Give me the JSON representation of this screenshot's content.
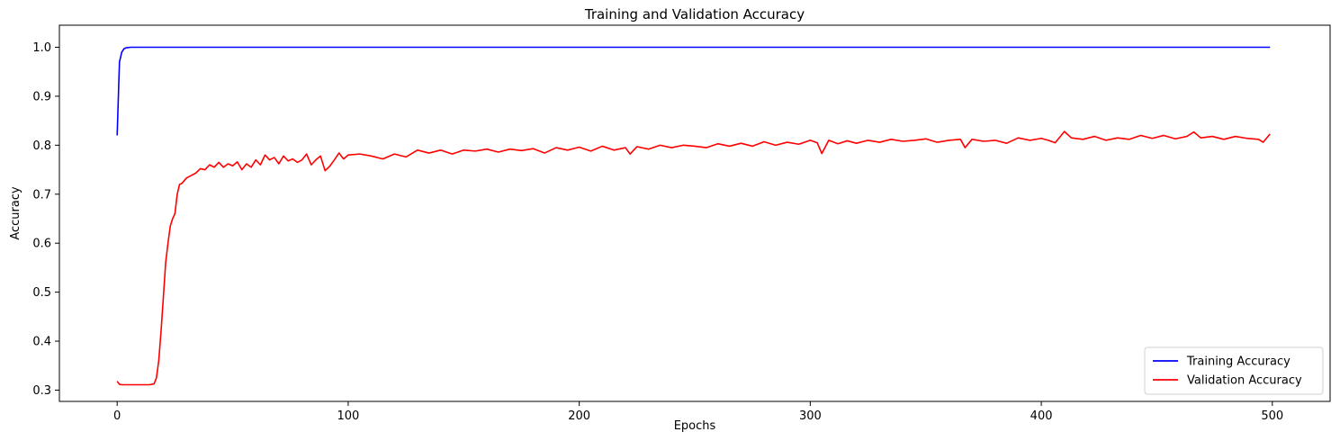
{
  "chart_data": {
    "type": "line",
    "title": "Training and Validation Accuracy",
    "xlabel": "Epochs",
    "ylabel": "Accuracy",
    "xlim": [
      -25,
      525
    ],
    "ylim": [
      0.277,
      1.045
    ],
    "xticks": [
      0,
      100,
      200,
      300,
      400,
      500
    ],
    "yticks": [
      0.3,
      0.4,
      0.5,
      0.6,
      0.7,
      0.8,
      0.9,
      1.0
    ],
    "grid": false,
    "legend_position": "lower-right",
    "series": [
      {
        "name": "Training Accuracy",
        "color": "#0000ff",
        "points": [
          [
            0,
            0.82
          ],
          [
            1,
            0.97
          ],
          [
            2,
            0.99
          ],
          [
            3,
            0.997
          ],
          [
            4,
            0.999
          ],
          [
            6,
            1.0
          ],
          [
            8,
            1.0
          ],
          [
            499,
            1.0
          ]
        ]
      },
      {
        "name": "Validation Accuracy",
        "color": "#ff0000",
        "points": [
          [
            0,
            0.318
          ],
          [
            1,
            0.312
          ],
          [
            2,
            0.311
          ],
          [
            5,
            0.311
          ],
          [
            10,
            0.311
          ],
          [
            14,
            0.311
          ],
          [
            16,
            0.313
          ],
          [
            17,
            0.325
          ],
          [
            18,
            0.36
          ],
          [
            19,
            0.42
          ],
          [
            20,
            0.49
          ],
          [
            21,
            0.56
          ],
          [
            22,
            0.6
          ],
          [
            23,
            0.635
          ],
          [
            24,
            0.65
          ],
          [
            25,
            0.66
          ],
          [
            26,
            0.7
          ],
          [
            27,
            0.72
          ],
          [
            28,
            0.722
          ],
          [
            30,
            0.733
          ],
          [
            32,
            0.738
          ],
          [
            34,
            0.743
          ],
          [
            36,
            0.752
          ],
          [
            38,
            0.75
          ],
          [
            40,
            0.76
          ],
          [
            42,
            0.755
          ],
          [
            44,
            0.765
          ],
          [
            46,
            0.755
          ],
          [
            48,
            0.762
          ],
          [
            50,
            0.758
          ],
          [
            52,
            0.766
          ],
          [
            54,
            0.75
          ],
          [
            56,
            0.762
          ],
          [
            58,
            0.755
          ],
          [
            60,
            0.77
          ],
          [
            62,
            0.76
          ],
          [
            64,
            0.78
          ],
          [
            66,
            0.77
          ],
          [
            68,
            0.775
          ],
          [
            70,
            0.762
          ],
          [
            72,
            0.778
          ],
          [
            74,
            0.768
          ],
          [
            76,
            0.772
          ],
          [
            78,
            0.765
          ],
          [
            80,
            0.77
          ],
          [
            82,
            0.782
          ],
          [
            84,
            0.76
          ],
          [
            86,
            0.77
          ],
          [
            88,
            0.778
          ],
          [
            90,
            0.748
          ],
          [
            92,
            0.757
          ],
          [
            94,
            0.77
          ],
          [
            96,
            0.784
          ],
          [
            98,
            0.772
          ],
          [
            100,
            0.78
          ],
          [
            105,
            0.782
          ],
          [
            110,
            0.778
          ],
          [
            115,
            0.772
          ],
          [
            120,
            0.782
          ],
          [
            125,
            0.776
          ],
          [
            130,
            0.79
          ],
          [
            135,
            0.784
          ],
          [
            140,
            0.79
          ],
          [
            145,
            0.782
          ],
          [
            150,
            0.79
          ],
          [
            155,
            0.788
          ],
          [
            160,
            0.792
          ],
          [
            165,
            0.786
          ],
          [
            170,
            0.792
          ],
          [
            175,
            0.789
          ],
          [
            180,
            0.793
          ],
          [
            185,
            0.784
          ],
          [
            190,
            0.795
          ],
          [
            195,
            0.79
          ],
          [
            200,
            0.796
          ],
          [
            205,
            0.788
          ],
          [
            210,
            0.798
          ],
          [
            215,
            0.79
          ],
          [
            220,
            0.795
          ],
          [
            222,
            0.782
          ],
          [
            225,
            0.797
          ],
          [
            230,
            0.792
          ],
          [
            235,
            0.8
          ],
          [
            240,
            0.795
          ],
          [
            245,
            0.8
          ],
          [
            250,
            0.798
          ],
          [
            255,
            0.795
          ],
          [
            260,
            0.803
          ],
          [
            265,
            0.798
          ],
          [
            270,
            0.804
          ],
          [
            275,
            0.798
          ],
          [
            280,
            0.807
          ],
          [
            285,
            0.8
          ],
          [
            290,
            0.806
          ],
          [
            295,
            0.802
          ],
          [
            300,
            0.81
          ],
          [
            303,
            0.805
          ],
          [
            305,
            0.783
          ],
          [
            308,
            0.81
          ],
          [
            312,
            0.803
          ],
          [
            316,
            0.809
          ],
          [
            320,
            0.804
          ],
          [
            325,
            0.81
          ],
          [
            330,
            0.806
          ],
          [
            335,
            0.812
          ],
          [
            340,
            0.808
          ],
          [
            345,
            0.81
          ],
          [
            350,
            0.813
          ],
          [
            355,
            0.806
          ],
          [
            360,
            0.81
          ],
          [
            365,
            0.812
          ],
          [
            367,
            0.795
          ],
          [
            370,
            0.812
          ],
          [
            375,
            0.808
          ],
          [
            380,
            0.81
          ],
          [
            385,
            0.804
          ],
          [
            390,
            0.815
          ],
          [
            395,
            0.81
          ],
          [
            400,
            0.814
          ],
          [
            403,
            0.81
          ],
          [
            406,
            0.805
          ],
          [
            410,
            0.828
          ],
          [
            413,
            0.815
          ],
          [
            418,
            0.812
          ],
          [
            423,
            0.818
          ],
          [
            428,
            0.81
          ],
          [
            433,
            0.815
          ],
          [
            438,
            0.812
          ],
          [
            443,
            0.82
          ],
          [
            448,
            0.814
          ],
          [
            453,
            0.82
          ],
          [
            458,
            0.813
          ],
          [
            463,
            0.818
          ],
          [
            466,
            0.827
          ],
          [
            469,
            0.815
          ],
          [
            474,
            0.818
          ],
          [
            479,
            0.812
          ],
          [
            484,
            0.818
          ],
          [
            489,
            0.814
          ],
          [
            494,
            0.812
          ],
          [
            496,
            0.806
          ],
          [
            499,
            0.823
          ]
        ]
      }
    ]
  }
}
